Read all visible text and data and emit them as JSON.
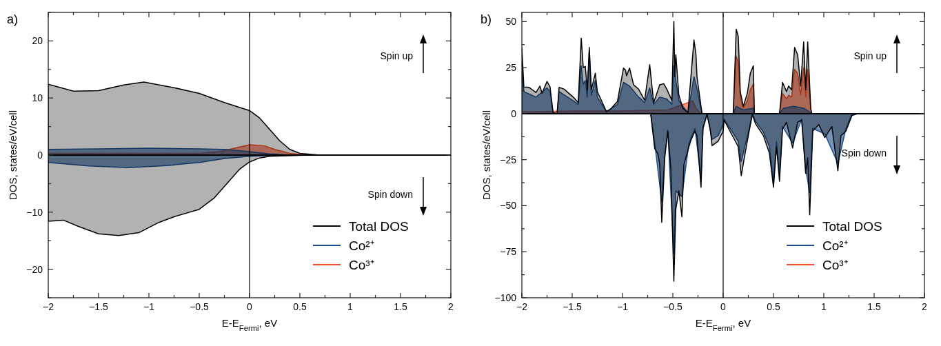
{
  "chart_data": [
    {
      "type": "area",
      "xlabel": "E-E$_{Fermi}$, eV",
      "ylabel": "DOS, states/eV/cell",
      "annotations": [
        "a)",
        "Spin up",
        "Spin down"
      ],
      "xlim": [
        -2,
        2
      ],
      "xticks": [
        {
          "value": -2,
          "label": "−2"
        },
        {
          "value": -1.75,
          "label": null
        },
        {
          "value": -1.5,
          "label": "−1.5"
        },
        {
          "value": -1.25,
          "label": null
        },
        {
          "value": -1,
          "label": "−1"
        },
        {
          "value": -0.75,
          "label": null
        },
        {
          "value": -0.5,
          "label": "−0.5"
        },
        {
          "value": -0.25,
          "label": null
        },
        0,
        {
          "value": 0.25,
          "label": null
        },
        0.5,
        {
          "value": 0.75,
          "label": null
        },
        1,
        {
          "value": 1.25,
          "label": null
        },
        1.5,
        {
          "value": 1.75,
          "label": null
        },
        2
      ],
      "ylim": [
        -25,
        25
      ],
      "yticks": [
        {
          "value": -25,
          "label": null
        },
        {
          "value": -20,
          "label": "−20"
        },
        {
          "value": -15,
          "label": null
        },
        {
          "value": -10,
          "label": "−10"
        },
        {
          "value": -5,
          "label": null
        },
        0,
        {
          "value": 5,
          "label": null
        },
        10,
        {
          "value": 15,
          "label": null
        },
        20,
        {
          "value": 25,
          "label": null
        }
      ],
      "ref_lines": [
        {
          "axis": "x",
          "value": 0,
          "color": "#000000"
        }
      ],
      "legend": "bottom right",
      "series": [
        {
          "name": "Total DOS",
          "color": "#000000",
          "x": [
            -2,
            -1.75,
            -1.5,
            -1.25,
            -1.05,
            -0.75,
            -0.5,
            -0.25,
            0,
            0.1,
            0.2,
            0.3,
            0.4,
            0.5,
            0.7,
            2
          ],
          "values": [
            12.4,
            11.2,
            11.3,
            12.3,
            12.8,
            11.8,
            10.8,
            9.2,
            7.8,
            6.5,
            4.5,
            2.5,
            1.0,
            0.3,
            0,
            0
          ]
        },
        {
          "color": "#000000",
          "x": [
            -2,
            -1.85,
            -1.7,
            -1.5,
            -1.3,
            -1.1,
            -0.9,
            -0.75,
            -0.5,
            -0.35,
            -0.2,
            -0.1,
            0,
            0.1,
            0.2,
            0.6,
            2
          ],
          "values": [
            -11.6,
            -11.4,
            -12.5,
            -13.8,
            -14.1,
            -13.6,
            -11.8,
            -10.8,
            -9.5,
            -7.5,
            -4.5,
            -2.5,
            -1.2,
            -0.5,
            -0.2,
            0,
            0
          ]
        },
        {
          "name": "Co²⁺",
          "color": "#1a4f8b",
          "x": [
            -2,
            -1.5,
            -1,
            -0.5,
            -0.25,
            0,
            0.2,
            0.4,
            2
          ],
          "values": [
            1.0,
            1.1,
            1.2,
            1.1,
            1.0,
            0.6,
            0.2,
            0,
            0
          ]
        },
        {
          "color": "#1a4f8b",
          "x": [
            -2,
            -1.6,
            -1.2,
            -0.8,
            -0.5,
            -0.25,
            0,
            0.3,
            2
          ],
          "values": [
            -1.3,
            -1.9,
            -2.2,
            -1.8,
            -1.3,
            -0.6,
            -0.2,
            0,
            0
          ]
        },
        {
          "name": "Co³⁺",
          "color": "#f04e23",
          "x": [
            -2,
            -0.5,
            -0.3,
            -0.15,
            0,
            0.15,
            0.25,
            0.4,
            0.55,
            2
          ],
          "values": [
            0.3,
            0.3,
            0.6,
            1.2,
            1.8,
            1.6,
            1.0,
            0.3,
            0,
            0
          ]
        }
      ]
    },
    {
      "type": "area",
      "xlabel": "E-E$_{Fermi}$, eV",
      "ylabel": "DOS, states/eV/cell",
      "annotations": [
        "b)",
        "Spin up",
        "Spin down"
      ],
      "xlim": [
        -2,
        2
      ],
      "xticks": [
        {
          "value": -2,
          "label": "−2"
        },
        {
          "value": -1.75,
          "label": null
        },
        {
          "value": -1.5,
          "label": "−1.5"
        },
        {
          "value": -1.25,
          "label": null
        },
        {
          "value": -1,
          "label": "−1"
        },
        {
          "value": -0.75,
          "label": null
        },
        {
          "value": -0.5,
          "label": "−0.5"
        },
        {
          "value": -0.25,
          "label": null
        },
        0,
        {
          "value": 0.25,
          "label": null
        },
        0.5,
        {
          "value": 0.75,
          "label": null
        },
        1,
        {
          "value": 1.25,
          "label": null
        },
        1.5,
        {
          "value": 1.75,
          "label": null
        },
        2
      ],
      "ylim": [
        -100,
        55
      ],
      "yticks": [
        {
          "value": -100,
          "label": "−100"
        },
        {
          "value": -87.5,
          "label": null
        },
        {
          "value": -75,
          "label": "−75"
        },
        {
          "value": -62.5,
          "label": null
        },
        {
          "value": -50,
          "label": "−50"
        },
        {
          "value": -37.5,
          "label": null
        },
        {
          "value": -25,
          "label": "−25"
        },
        {
          "value": -12.5,
          "label": null
        },
        0,
        {
          "value": 12.5,
          "label": null
        },
        25,
        {
          "value": 37.5,
          "label": null
        },
        50
      ],
      "ref_lines": [
        {
          "axis": "x",
          "value": 0,
          "color": "#000000"
        }
      ],
      "legend": "bottom right",
      "series": [
        {
          "name": "Total DOS",
          "color": "#000000",
          "x": [
            -2,
            -1.98,
            -1.93,
            -1.86,
            -1.82,
            -1.8,
            -1.75,
            -1.72,
            -1.69,
            -1.65,
            -1.63,
            -1.58,
            -1.49,
            -1.44,
            -1.41,
            -1.39,
            -1.37,
            -1.35,
            -1.33,
            -1.31,
            -1.27,
            -1.25,
            -1.16,
            -1.12,
            -1.05,
            -0.99,
            -0.97,
            -0.96,
            -0.93,
            -0.89,
            -0.84,
            -0.78,
            -0.73,
            -0.69,
            -0.63,
            -0.59,
            -0.56,
            -0.51,
            -0.49,
            -0.48,
            -0.47,
            -0.44,
            -0.4,
            -0.35,
            -0.29,
            -0.27,
            -0.26,
            -0.21,
            0.1,
            0.13,
            0.15,
            0.17,
            0.2,
            0.24,
            0.27,
            0.3,
            0.31,
            0.56,
            0.59,
            0.63,
            0.65,
            0.68,
            0.71,
            0.74,
            0.77,
            0.8,
            0.82,
            0.84,
            0.87,
            0.88,
            2
          ],
          "values": [
            36,
            14.5,
            14.3,
            11.5,
            15,
            11,
            17.5,
            14.5,
            0.6,
            0,
            14.3,
            13.3,
            9,
            6,
            41,
            25,
            25.7,
            13,
            36,
            13,
            22,
            12,
            1.2,
            2.4,
            6.7,
            24.8,
            23.6,
            20.6,
            24.8,
            15.7,
            13.3,
            7.3,
            26.6,
            6,
            15.7,
            16.3,
            13.3,
            7.3,
            50,
            20,
            32,
            10,
            3,
            0.5,
            40,
            32,
            20,
            0,
            0,
            45.8,
            42,
            12,
            4,
            11,
            22,
            26,
            0,
            0,
            17,
            12,
            15,
            13,
            36,
            32,
            15,
            39,
            13,
            39,
            3,
            0,
            0
          ]
        },
        {
          "color": "#000000",
          "x": [
            -2,
            -0.72,
            -0.68,
            -0.65,
            -0.63,
            -0.61,
            -0.58,
            -0.55,
            -0.52,
            -0.49,
            -0.47,
            -0.44,
            -0.41,
            -0.39,
            -0.34,
            -0.32,
            -0.28,
            -0.26,
            -0.22,
            -0.2,
            -0.16,
            -0.13,
            -0.11,
            -0.05,
            0,
            0.01,
            0.08,
            0.15,
            0.18,
            0.21,
            0.25,
            0.29,
            0.32,
            0.4,
            0.46,
            0.5,
            0.53,
            0.56,
            0.59,
            0.63,
            0.69,
            0.74,
            0.78,
            0.82,
            0.84,
            0.86,
            0.89,
            0.95,
            1.01,
            1.08,
            1.14,
            1.17,
            1.22,
            1.28,
            1.34,
            2
          ],
          "values": [
            0,
            0,
            -19,
            -21.6,
            -27.7,
            -59,
            -24,
            -9.5,
            -30,
            -91,
            -51.8,
            -42,
            -56,
            -27.7,
            -18,
            -14.4,
            -9.5,
            -12,
            -40,
            -8,
            -0.5,
            -8,
            -17.4,
            -15,
            -9.5,
            -3.5,
            -10.8,
            -18,
            -33.7,
            -24,
            -12,
            -0.5,
            -5.3,
            -12,
            -21.6,
            -40,
            -18,
            -36.7,
            -8.3,
            -4.7,
            -18.6,
            -4.7,
            -3.5,
            -32.5,
            -24,
            -55,
            -9.5,
            -5.9,
            -13,
            -7,
            -31,
            -12,
            -9.5,
            -1,
            0,
            0
          ]
        },
        {
          "name": "Co²⁺",
          "color": "#1a4f8b",
          "x": [
            -2,
            -1.98,
            -1.86,
            -1.75,
            -1.72,
            -1.69,
            -1.65,
            -1.63,
            -1.49,
            -1.44,
            -1.41,
            -1.39,
            -1.37,
            -1.35,
            -1.33,
            -1.31,
            -1.27,
            -1.25,
            -1.16,
            -1.05,
            -0.99,
            -0.93,
            -0.84,
            -0.78,
            -0.73,
            -0.69,
            -0.63,
            -0.56,
            -0.51,
            -0.49,
            -0.47,
            -0.44,
            -0.35,
            -0.29,
            -0.27,
            -0.21,
            0.1,
            0.13,
            0.2,
            0.3,
            0.31,
            0.56,
            0.6,
            0.7,
            0.8,
            0.87,
            0.88,
            2
          ],
          "values": [
            26,
            12,
            9,
            14,
            12,
            0.5,
            0,
            12,
            7,
            5,
            26,
            16,
            18,
            9,
            34,
            10,
            18,
            9,
            1,
            5,
            17,
            15,
            9,
            6,
            14,
            5,
            9,
            8,
            5,
            26,
            18,
            7,
            0.5,
            20,
            16,
            0,
            0,
            4,
            2,
            3,
            0,
            0,
            3,
            4,
            3,
            0.5,
            0,
            0
          ]
        },
        {
          "color": "#1a4f8b",
          "x": [
            -2,
            -0.72,
            -0.68,
            -0.61,
            -0.58,
            -0.55,
            -0.49,
            -0.47,
            -0.41,
            -0.34,
            -0.28,
            -0.22,
            -0.2,
            -0.16,
            -0.11,
            -0.05,
            0,
            0.01,
            0.08,
            0.15,
            0.18,
            0.25,
            0.29,
            0.32,
            0.4,
            0.46,
            0.5,
            0.53,
            0.56,
            0.59,
            0.69,
            0.78,
            0.82,
            0.86,
            0.89,
            1.01,
            1.14,
            1.22,
            1.28,
            2
          ],
          "values": [
            0,
            0,
            -16,
            -48,
            -22,
            -9,
            -76,
            -42,
            -45,
            -16,
            -8,
            -35,
            -7,
            0,
            -14,
            -12,
            -6,
            -3,
            -9,
            -15,
            -26,
            -10,
            0,
            -4,
            -10,
            -18,
            -37,
            -15,
            -33,
            -7,
            -16,
            -3,
            -30,
            -43,
            -8,
            -11,
            -27,
            -8,
            0,
            0
          ]
        },
        {
          "name": "Co³⁺",
          "color": "#f04e23",
          "x": [
            -2,
            -1.5,
            -1,
            -0.55,
            -0.3,
            -0.27,
            -0.22,
            0.1,
            0.13,
            0.15,
            0.17,
            0.2,
            0.24,
            0.27,
            0.3,
            0.31,
            0.56,
            0.59,
            0.63,
            0.65,
            0.68,
            0.71,
            0.74,
            0.77,
            0.8,
            0.82,
            0.84,
            0.87,
            0.88,
            2
          ],
          "values": [
            1,
            1.5,
            1.5,
            2,
            7,
            3,
            0,
            0,
            31,
            28,
            9,
            3,
            7,
            13,
            16,
            0,
            0,
            11,
            8,
            10,
            9,
            24,
            22,
            10,
            25,
            9,
            24,
            2,
            0,
            0
          ]
        }
      ]
    }
  ]
}
